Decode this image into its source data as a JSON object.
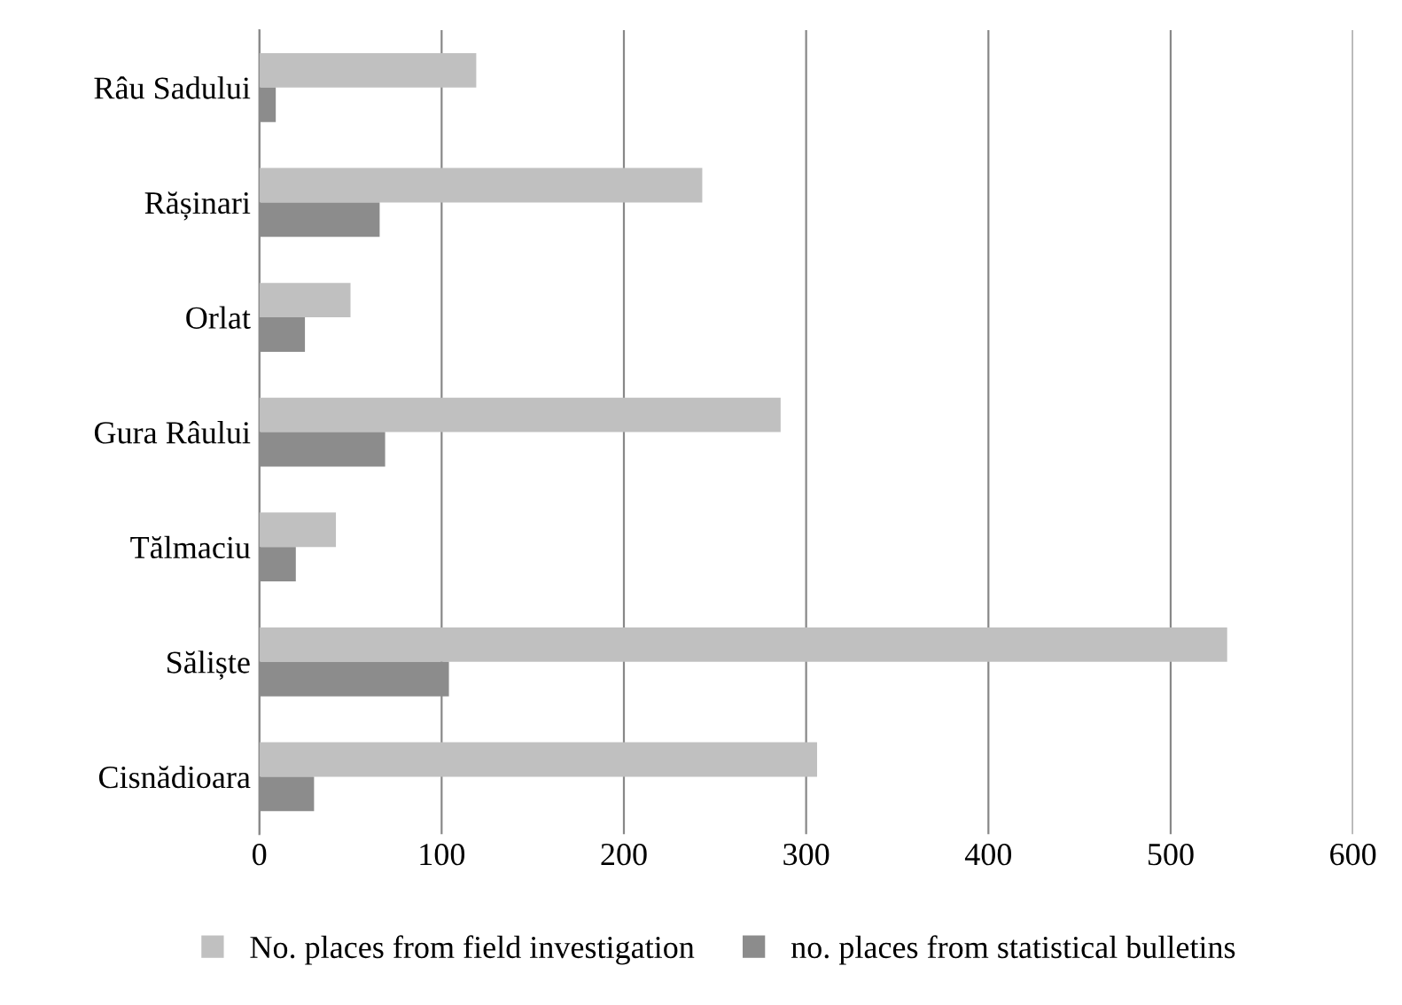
{
  "chart_data": {
    "type": "bar",
    "orientation": "horizontal",
    "categories": [
      "Râu Sadului",
      "Rășinari",
      "Orlat",
      "Gura Râului",
      "Tălmaciu",
      "Săliște",
      "Cisnădioara"
    ],
    "series": [
      {
        "name": "No. places from field investigation",
        "color": "#c0c0c0",
        "values": [
          119,
          243,
          50,
          286,
          42,
          531,
          306
        ]
      },
      {
        "name": "no. places from statistical bulletins",
        "color": "#8c8c8c",
        "values": [
          9,
          66,
          25,
          69,
          20,
          104,
          30
        ]
      }
    ],
    "xlim": [
      0,
      600
    ],
    "xticks": [
      0,
      100,
      200,
      300,
      400,
      500,
      600
    ],
    "grid": "x",
    "legend": "bottom"
  }
}
